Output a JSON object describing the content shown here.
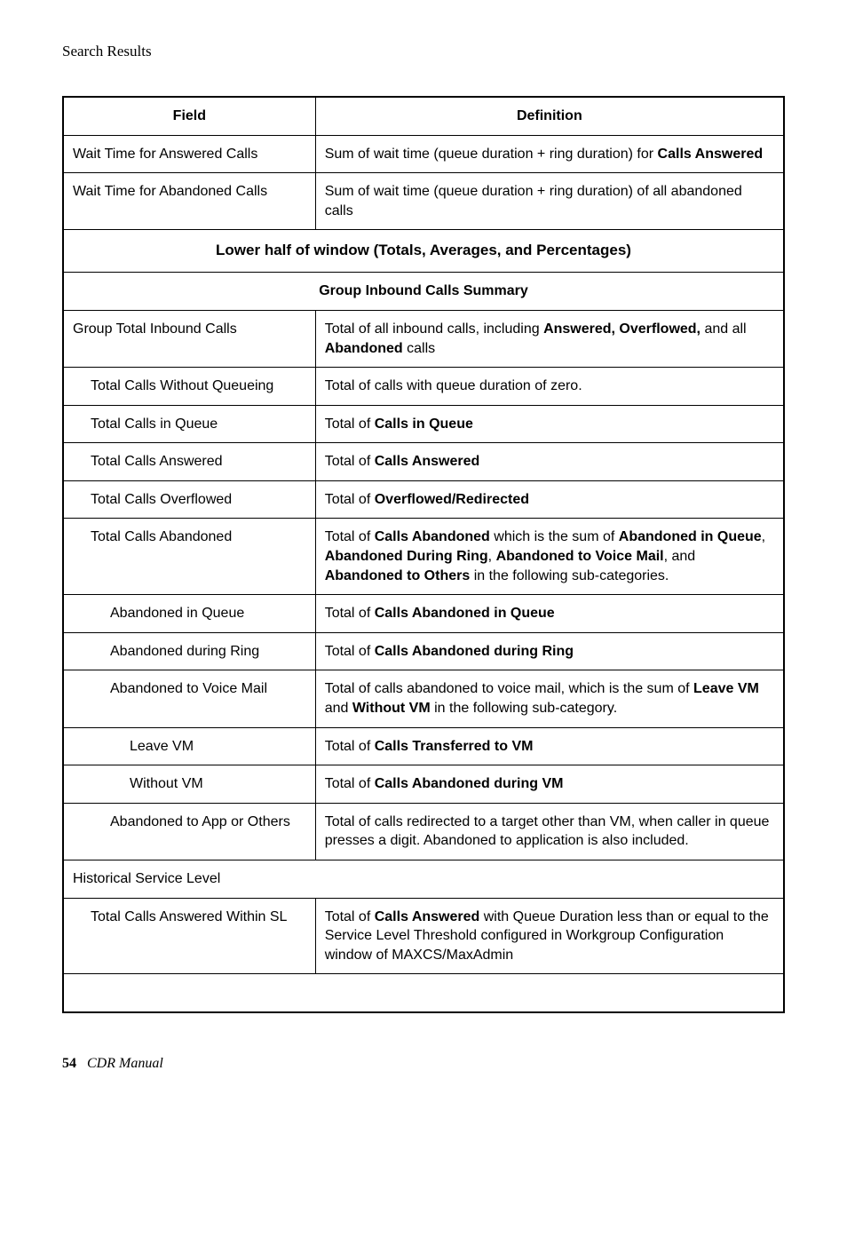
{
  "page": {
    "header": "Search Results",
    "pageNumber": "54",
    "bookTitle": "CDR Manual"
  },
  "table": {
    "headers": {
      "field": "Field",
      "definition": "Definition"
    },
    "rows": {
      "r1": {
        "field": "Wait Time for Answered Calls",
        "def_pre": "Sum of wait time (queue duration + ring duration) for ",
        "def_b1": "Calls Answered"
      },
      "r2": {
        "field": "Wait Time for Abandoned Calls",
        "def": "Sum of wait time (queue duration + ring duration) of all abandoned calls"
      },
      "section1": "Lower half of window (Totals, Averages, and Percentages)",
      "sub1": "Group Inbound Calls Summary",
      "r3": {
        "field": "Group Total Inbound Calls",
        "def_pre": "Total of all inbound calls, including ",
        "def_b1": "Answered, Overflowed,",
        "def_mid": " and all ",
        "def_b2": "Abandoned",
        "def_post": " calls"
      },
      "r4": {
        "field": "Total Calls Without Queueing",
        "def": "Total of calls with queue duration of zero."
      },
      "r5": {
        "field": "Total Calls in Queue",
        "def_pre": "Total of ",
        "def_b1": "Calls in Queue"
      },
      "r6": {
        "field": "Total Calls Answered",
        "def_pre": "Total of ",
        "def_b1": "Calls Answered"
      },
      "r7": {
        "field": "Total Calls Overflowed",
        "def_pre": "Total of ",
        "def_b1": "Overflowed/Redirected"
      },
      "r8": {
        "field": "Total Calls Abandoned",
        "def_pre": "Total of ",
        "def_b1": "Calls Abandoned",
        "def_mid1": " which is the sum of ",
        "def_b2": "Abandoned in Queue",
        "def_mid2": ", ",
        "def_b3": "Abandoned During Ring",
        "def_mid3": ", ",
        "def_b4": "Abandoned to Voice Mail",
        "def_mid4": ", and ",
        "def_b5": "Abandoned to Others",
        "def_post": " in the following sub-categories."
      },
      "r9": {
        "field": "Abandoned in Queue",
        "def_pre": "Total of ",
        "def_b1": "Calls Abandoned in Queue"
      },
      "r10": {
        "field": "Abandoned during Ring",
        "def_pre": "Total of ",
        "def_b1": "Calls Abandoned during Ring"
      },
      "r11": {
        "field": "Abandoned to Voice Mail",
        "def_pre": "Total of calls abandoned to voice mail, which is the sum of ",
        "def_b1": "Leave VM",
        "def_mid": " and ",
        "def_b2": "Without VM",
        "def_post": " in the following sub-category."
      },
      "r12": {
        "field": "Leave VM",
        "def_pre": "Total of ",
        "def_b1": "Calls Transferred to VM"
      },
      "r13": {
        "field": "Without VM",
        "def_pre": "Total of ",
        "def_b1": "Calls Abandoned during VM"
      },
      "r14": {
        "field": "Abandoned to App or Others",
        "def": "Total of calls redirected to a target other than VM, when caller in queue presses a digit. Abandoned to application is also included."
      },
      "r15": {
        "field": "Historical Service Level"
      },
      "r16": {
        "field": "Total Calls Answered Within SL",
        "def_pre": "Total of ",
        "def_b1": "Calls Answered",
        "def_post": " with Queue Duration less than or equal to the Service Level Threshold configured in Workgroup Configuration window of MAXCS/MaxAdmin"
      }
    }
  }
}
